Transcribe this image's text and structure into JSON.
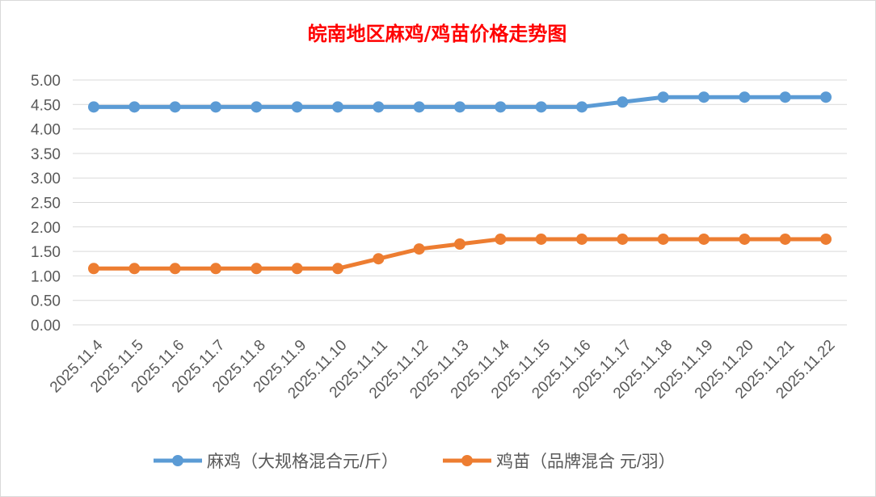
{
  "chart_data": {
    "type": "line",
    "title": "皖南地区麻鸡/鸡苗价格走势图",
    "title_color": "#ff0000",
    "categories": [
      "2025.11.4",
      "2025.11.5",
      "2025.11.6",
      "2025.11.7",
      "2025.11.8",
      "2025.11.9",
      "2025.11.10",
      "2025.11.11",
      "2025.11.12",
      "2025.11.13",
      "2025.11.14",
      "2025.11.15",
      "2025.11.16",
      "2025.11.17",
      "2025.11.18",
      "2025.11.19",
      "2025.11.20",
      "2025.11.21",
      "2025.11.22"
    ],
    "series": [
      {
        "name": "麻鸡（大规格混合元/斤）",
        "color": "#5b9bd5",
        "values": [
          4.45,
          4.45,
          4.45,
          4.45,
          4.45,
          4.45,
          4.45,
          4.45,
          4.45,
          4.45,
          4.45,
          4.45,
          4.45,
          4.55,
          4.65,
          4.65,
          4.65,
          4.65,
          4.65
        ]
      },
      {
        "name": "鸡苗（品牌混合 元/羽）",
        "color": "#ed7d31",
        "values": [
          1.15,
          1.15,
          1.15,
          1.15,
          1.15,
          1.15,
          1.15,
          1.35,
          1.55,
          1.65,
          1.75,
          1.75,
          1.75,
          1.75,
          1.75,
          1.75,
          1.75,
          1.75,
          1.75
        ]
      }
    ],
    "yticks": [
      "0.00",
      "0.50",
      "1.00",
      "1.50",
      "2.00",
      "2.50",
      "3.00",
      "3.50",
      "4.00",
      "4.50",
      "5.00"
    ],
    "ylim": [
      0,
      5
    ],
    "grid": true,
    "legend": "bottom",
    "xlabel": "",
    "ylabel": ""
  }
}
